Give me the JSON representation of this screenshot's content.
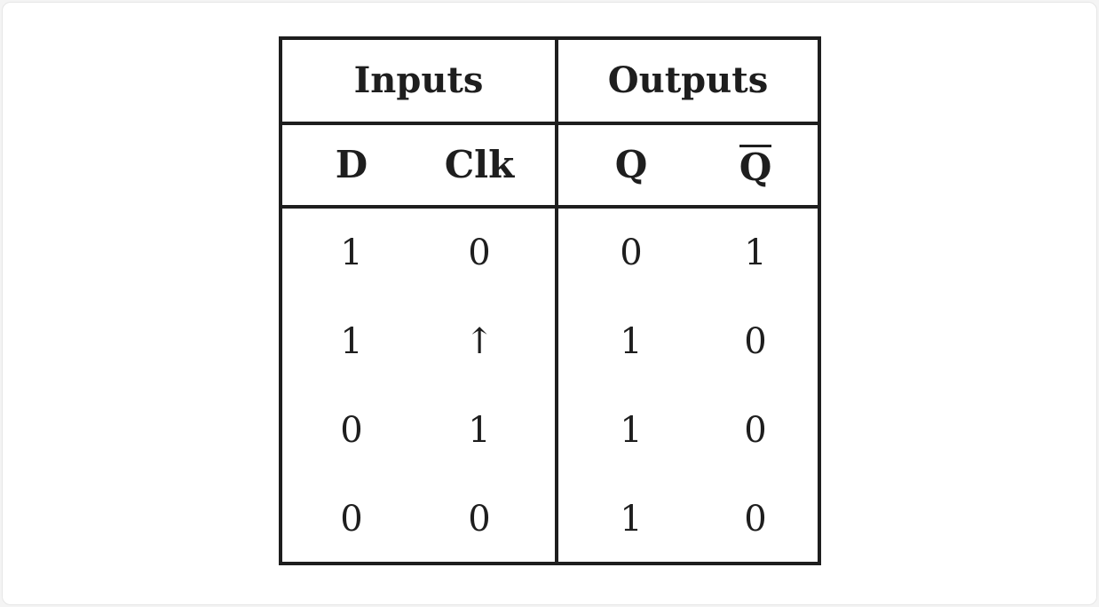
{
  "table": {
    "group_headers": {
      "inputs": "Inputs",
      "outputs": "Outputs"
    },
    "columns": {
      "d": "D",
      "clk": "Clk",
      "q": "Q",
      "q_bar": "Q"
    },
    "q_bar_overlined": true,
    "rows": [
      {
        "d": "1",
        "clk": "0",
        "q": "0",
        "q_bar": "1"
      },
      {
        "d": "1",
        "clk": "↑",
        "q": "1",
        "q_bar": "0"
      },
      {
        "d": "0",
        "clk": "1",
        "q": "1",
        "q_bar": "0"
      },
      {
        "d": "0",
        "clk": "0",
        "q": "1",
        "q_bar": "0"
      }
    ]
  }
}
